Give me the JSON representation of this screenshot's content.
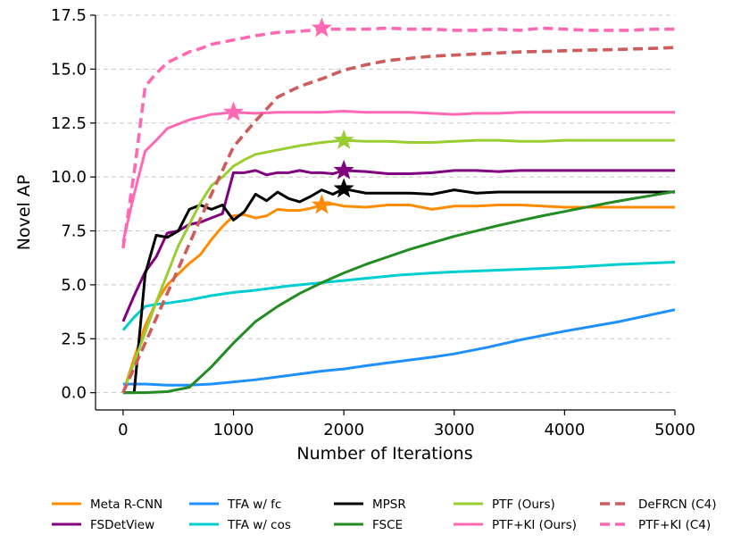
{
  "chart_data": {
    "type": "line",
    "title": "",
    "xlabel": "Number of Iterations",
    "ylabel": "Novel AP",
    "xlim": [
      -250,
      5000
    ],
    "ylim": [
      -0.8,
      17.5
    ],
    "xticks": [
      0,
      1000,
      2000,
      3000,
      4000,
      5000
    ],
    "xtick_labels": [
      "0",
      "1000",
      "2000",
      "3000",
      "4000",
      "5000"
    ],
    "yticks": [
      0,
      2.5,
      5,
      7.5,
      10,
      12.5,
      15,
      17.5
    ],
    "ytick_labels": [
      "0.0",
      "2.5",
      "5.0",
      "7.5",
      "10.0",
      "12.5",
      "15.0",
      "17.5"
    ],
    "grid": "horizontal dashed",
    "legend_placement": "bottom",
    "series": [
      {
        "name": "Meta R-CNN",
        "color": "#ff8c00",
        "dash": "solid",
        "x": [
          0,
          100,
          200,
          300,
          400,
          500,
          600,
          700,
          800,
          900,
          1000,
          1100,
          1200,
          1300,
          1400,
          1500,
          1600,
          1700,
          1800,
          1900,
          2000,
          2200,
          2400,
          2600,
          2800,
          3000,
          3200,
          3400,
          3600,
          3800,
          4000,
          4200,
          4400,
          4600,
          4800,
          5000
        ],
        "y": [
          0.0,
          1.6,
          3.1,
          4.2,
          5.0,
          5.5,
          6.0,
          6.4,
          7.1,
          7.7,
          8.2,
          8.25,
          8.1,
          8.2,
          8.5,
          8.45,
          8.45,
          8.55,
          8.7,
          8.75,
          8.65,
          8.6,
          8.7,
          8.7,
          8.5,
          8.65,
          8.65,
          8.7,
          8.7,
          8.65,
          8.6,
          8.6,
          8.6,
          8.6,
          8.6,
          8.6
        ],
        "star": [
          1800,
          8.7
        ]
      },
      {
        "name": "FSDetView",
        "color": "#800080",
        "dash": "solid",
        "x": [
          0,
          100,
          200,
          300,
          400,
          500,
          600,
          700,
          800,
          900,
          1000,
          1100,
          1200,
          1300,
          1400,
          1500,
          1600,
          1700,
          1800,
          1900,
          2000,
          2200,
          2400,
          2600,
          2800,
          3000,
          3200,
          3400,
          3600,
          3800,
          4000,
          4200,
          4400,
          4600,
          4800,
          5000
        ],
        "y": [
          3.3,
          4.5,
          5.6,
          6.3,
          7.4,
          7.5,
          7.8,
          7.9,
          8.1,
          8.3,
          10.2,
          10.2,
          10.3,
          10.1,
          10.2,
          10.2,
          10.3,
          10.2,
          10.2,
          10.15,
          10.3,
          10.25,
          10.15,
          10.15,
          10.2,
          10.3,
          10.3,
          10.25,
          10.3,
          10.3,
          10.3,
          10.3,
          10.3,
          10.3,
          10.3,
          10.3
        ],
        "star": [
          2000,
          10.3
        ]
      },
      {
        "name": "TFA w/ fc",
        "color": "#1e90ff",
        "dash": "solid",
        "x": [
          0,
          200,
          400,
          600,
          800,
          1000,
          1200,
          1500,
          1800,
          2000,
          2200,
          2500,
          2800,
          3000,
          3300,
          3600,
          4000,
          4500,
          5000
        ],
        "y": [
          0.4,
          0.4,
          0.35,
          0.35,
          0.4,
          0.5,
          0.6,
          0.8,
          1.0,
          1.1,
          1.25,
          1.45,
          1.65,
          1.8,
          2.1,
          2.45,
          2.85,
          3.3,
          3.85
        ]
      },
      {
        "name": "TFA w/ cos",
        "color": "#00ced1",
        "dash": "solid",
        "x": [
          0,
          100,
          200,
          300,
          400,
          600,
          800,
          1000,
          1200,
          1500,
          1800,
          2000,
          2200,
          2500,
          2800,
          3000,
          3500,
          4000,
          4500,
          5000
        ],
        "y": [
          2.9,
          3.5,
          4.0,
          4.1,
          4.15,
          4.3,
          4.5,
          4.65,
          4.75,
          4.95,
          5.1,
          5.2,
          5.3,
          5.45,
          5.55,
          5.6,
          5.7,
          5.8,
          5.95,
          6.05
        ]
      },
      {
        "name": "MPSR",
        "color": "#000000",
        "dash": "solid",
        "x": [
          0,
          100,
          200,
          300,
          400,
          500,
          600,
          700,
          800,
          900,
          1000,
          1100,
          1200,
          1300,
          1400,
          1500,
          1600,
          1700,
          1800,
          1900,
          2000,
          2200,
          2400,
          2600,
          2800,
          3000,
          3200,
          3400,
          3600,
          3800,
          4000,
          4200,
          4400,
          4600,
          4800,
          5000
        ],
        "y": [
          0.0,
          0.0,
          5.5,
          7.3,
          7.2,
          7.5,
          8.5,
          8.7,
          8.5,
          8.7,
          8.0,
          8.4,
          9.2,
          8.9,
          9.3,
          9.0,
          8.85,
          9.1,
          9.4,
          9.2,
          9.45,
          9.25,
          9.25,
          9.25,
          9.2,
          9.4,
          9.25,
          9.3,
          9.3,
          9.3,
          9.3,
          9.3,
          9.3,
          9.3,
          9.3,
          9.3
        ],
        "star": [
          2000,
          9.45
        ]
      },
      {
        "name": "FSCE",
        "color": "#228b22",
        "dash": "solid",
        "x": [
          0,
          200,
          400,
          600,
          800,
          1000,
          1200,
          1400,
          1600,
          1800,
          2000,
          2200,
          2400,
          2600,
          2800,
          3000,
          3200,
          3400,
          3600,
          3800,
          4000,
          4200,
          4400,
          4600,
          4800,
          5000
        ],
        "y": [
          0.0,
          0.0,
          0.05,
          0.25,
          1.2,
          2.3,
          3.3,
          4.0,
          4.6,
          5.1,
          5.55,
          5.95,
          6.3,
          6.65,
          6.95,
          7.25,
          7.5,
          7.75,
          7.98,
          8.2,
          8.4,
          8.6,
          8.8,
          8.98,
          9.15,
          9.33
        ]
      },
      {
        "name": "PTF (Ours)",
        "color": "#9acd32",
        "dash": "solid",
        "x": [
          0,
          100,
          200,
          300,
          400,
          500,
          600,
          700,
          800,
          900,
          1000,
          1100,
          1200,
          1400,
          1600,
          1800,
          2000,
          2200,
          2400,
          2600,
          2800,
          3000,
          3200,
          3400,
          3600,
          3800,
          4000,
          4200,
          4400,
          4600,
          4800,
          5000
        ],
        "y": [
          0.0,
          1.4,
          2.8,
          4.2,
          5.5,
          6.8,
          7.8,
          8.8,
          9.6,
          10.0,
          10.5,
          10.8,
          11.05,
          11.25,
          11.45,
          11.6,
          11.7,
          11.65,
          11.65,
          11.6,
          11.6,
          11.65,
          11.7,
          11.7,
          11.65,
          11.65,
          11.7,
          11.7,
          11.7,
          11.7,
          11.7,
          11.7
        ],
        "star": [
          2000,
          11.7
        ]
      },
      {
        "name": "PTF+KI (Ours)",
        "color": "#ff69b4",
        "dash": "solid",
        "x": [
          0,
          100,
          200,
          300,
          400,
          500,
          600,
          800,
          1000,
          1200,
          1400,
          1600,
          1800,
          2000,
          2200,
          2400,
          2600,
          2800,
          3000,
          3200,
          3400,
          3600,
          3800,
          4000,
          4200,
          4400,
          4600,
          4800,
          5000
        ],
        "y": [
          7.0,
          9.2,
          11.2,
          11.7,
          12.25,
          12.45,
          12.65,
          12.9,
          13.0,
          12.95,
          13.0,
          13.0,
          13.0,
          13.05,
          13.0,
          13.0,
          13.0,
          12.95,
          12.9,
          12.95,
          12.95,
          13.0,
          13.0,
          13.0,
          13.0,
          13.0,
          13.0,
          13.0,
          13.0
        ],
        "star": [
          1000,
          13.0
        ]
      },
      {
        "name": "DeFRCN (C4)",
        "color": "#cd5c5c",
        "dash": "dashed",
        "x": [
          0,
          200,
          400,
          600,
          800,
          1000,
          1200,
          1400,
          1600,
          1800,
          2000,
          2200,
          2400,
          2600,
          2800,
          3000,
          3200,
          3400,
          3600,
          3800,
          4000,
          4200,
          4400,
          4600,
          4800,
          5000
        ],
        "y": [
          0.0,
          2.3,
          4.6,
          6.9,
          9.2,
          11.4,
          12.6,
          13.7,
          14.2,
          14.55,
          14.95,
          15.2,
          15.4,
          15.5,
          15.6,
          15.65,
          15.7,
          15.75,
          15.8,
          15.82,
          15.85,
          15.88,
          15.9,
          15.93,
          15.96,
          16.0
        ]
      },
      {
        "name": "PTF+KI (C4)",
        "color": "#ff69b4",
        "dash": "dashed",
        "x": [
          0,
          100,
          200,
          300,
          400,
          500,
          600,
          700,
          800,
          900,
          1000,
          1200,
          1400,
          1600,
          1800,
          2000,
          2200,
          2400,
          2600,
          2800,
          3000,
          3200,
          3400,
          3600,
          3800,
          4000,
          4200,
          4400,
          4600,
          4800,
          5000
        ],
        "y": [
          6.7,
          10.2,
          14.2,
          14.8,
          15.3,
          15.55,
          15.8,
          15.95,
          16.15,
          16.25,
          16.35,
          16.55,
          16.7,
          16.75,
          16.85,
          16.85,
          16.85,
          16.9,
          16.85,
          16.85,
          16.8,
          16.8,
          16.85,
          16.8,
          16.9,
          16.85,
          16.8,
          16.8,
          16.8,
          16.85,
          16.85
        ],
        "star": [
          1800,
          16.9
        ]
      }
    ]
  }
}
